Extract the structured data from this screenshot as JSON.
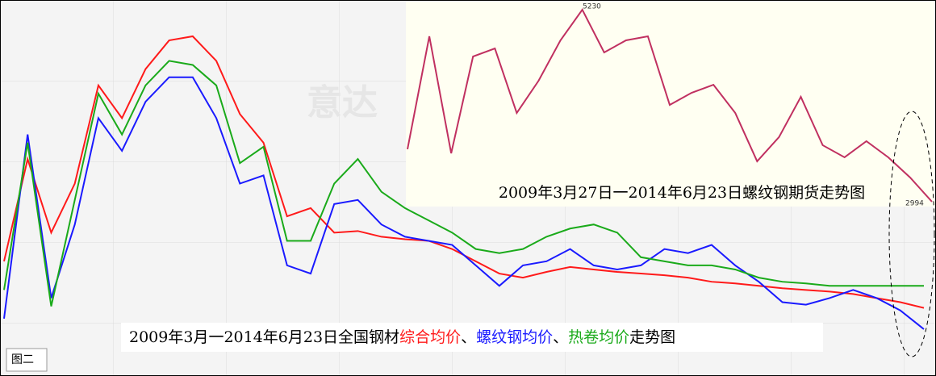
{
  "chart_data": [
    {
      "type": "line",
      "caption_prefix": "2009年3月一2014年6月23日全国钢材",
      "separator": "、",
      "caption_suffix": "走势图",
      "figure_label": "图二",
      "watermark": "意达",
      "series": [
        {
          "name": "综合均价",
          "color": "#ff1a1a",
          "values": [
            175,
            300,
            210,
            270,
            390,
            350,
            410,
            445,
            450,
            420,
            355,
            320,
            230,
            240,
            210,
            212,
            205,
            202,
            200,
            190,
            175,
            160,
            155,
            162,
            168,
            165,
            162,
            160,
            158,
            155,
            150,
            148,
            145,
            142,
            140,
            138,
            135,
            130,
            125,
            118
          ]
        },
        {
          "name": "螺纹钢均价",
          "color": "#1a1aff",
          "values": [
            105,
            330,
            130,
            220,
            350,
            310,
            370,
            400,
            400,
            350,
            270,
            280,
            170,
            160,
            245,
            250,
            220,
            205,
            200,
            195,
            170,
            145,
            170,
            175,
            190,
            170,
            165,
            170,
            190,
            185,
            195,
            170,
            150,
            125,
            122,
            130,
            140,
            130,
            115,
            92
          ]
        },
        {
          "name": "热卷均价",
          "color": "#1aaa1a",
          "values": [
            140,
            320,
            120,
            250,
            380,
            330,
            390,
            420,
            415,
            390,
            295,
            315,
            200,
            200,
            270,
            300,
            260,
            240,
            225,
            210,
            190,
            185,
            190,
            205,
            215,
            220,
            210,
            180,
            175,
            170,
            170,
            165,
            155,
            150,
            148,
            145,
            145,
            145,
            145,
            145
          ]
        }
      ]
    },
    {
      "type": "line",
      "title": "2009年3月27日一2014年6月23日螺纹钢期货走势图",
      "high": 5230,
      "low": 2994,
      "color": "#c03060",
      "values": [
        3605,
        4920,
        3558,
        4685,
        4779,
        4027,
        4403,
        4873,
        5230,
        4732,
        4873,
        4920,
        4121,
        4262,
        4356,
        4027,
        3464,
        3746,
        4215,
        3652,
        3511,
        3699,
        3511,
        3276,
        2994
      ]
    }
  ]
}
